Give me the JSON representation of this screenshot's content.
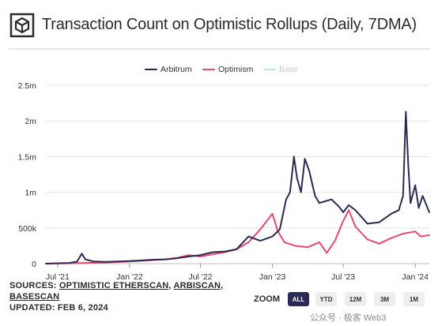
{
  "header": {
    "title": "Transaction Count on Optimistic Rollups (Daily, 7DMA)",
    "logo_icon": "cube-logo-icon"
  },
  "legend": [
    {
      "name": "Arbitrum",
      "color": "#2b2a55",
      "active": true
    },
    {
      "name": "Optimism",
      "color": "#e8476f",
      "active": true
    },
    {
      "name": "Base",
      "color": "#bfe4e6",
      "active": false
    }
  ],
  "chart_data": {
    "type": "line",
    "title": "Transaction Count on Optimistic Rollups (Daily, 7DMA)",
    "xlabel": "",
    "ylabel": "",
    "ylim": [
      0,
      2500000
    ],
    "xlim": [
      "2021-06-01",
      "2024-02-06"
    ],
    "grid": "horizontal",
    "legend_position": "top-center",
    "y_ticks": [
      {
        "value": 0,
        "label": "0"
      },
      {
        "value": 500000,
        "label": "500k"
      },
      {
        "value": 1000000,
        "label": "1m"
      },
      {
        "value": 1500000,
        "label": "1.5m"
      },
      {
        "value": 2000000,
        "label": "2m"
      },
      {
        "value": 2500000,
        "label": "2.5m"
      }
    ],
    "x_ticks": [
      {
        "date": "2021-07-01",
        "label": "Jul '21"
      },
      {
        "date": "2022-01-01",
        "label": "Jan '22"
      },
      {
        "date": "2022-07-01",
        "label": "Jul '22"
      },
      {
        "date": "2023-01-01",
        "label": "Jan '23"
      },
      {
        "date": "2023-07-01",
        "label": "Jul '23"
      },
      {
        "date": "2024-01-01",
        "label": "Jan '24"
      }
    ],
    "series": [
      {
        "name": "Arbitrum",
        "color": "#2b2a55",
        "points": [
          [
            "2021-06-01",
            0
          ],
          [
            "2021-07-01",
            5000
          ],
          [
            "2021-08-01",
            10000
          ],
          [
            "2021-08-20",
            30000
          ],
          [
            "2021-09-01",
            140000
          ],
          [
            "2021-09-10",
            60000
          ],
          [
            "2021-10-01",
            30000
          ],
          [
            "2021-11-01",
            25000
          ],
          [
            "2021-12-01",
            30000
          ],
          [
            "2022-01-01",
            35000
          ],
          [
            "2022-02-01",
            45000
          ],
          [
            "2022-03-01",
            55000
          ],
          [
            "2022-04-01",
            60000
          ],
          [
            "2022-05-01",
            75000
          ],
          [
            "2022-06-01",
            100000
          ],
          [
            "2022-07-01",
            120000
          ],
          [
            "2022-08-01",
            160000
          ],
          [
            "2022-09-01",
            170000
          ],
          [
            "2022-10-01",
            200000
          ],
          [
            "2022-11-01",
            380000
          ],
          [
            "2022-12-01",
            320000
          ],
          [
            "2023-01-01",
            380000
          ],
          [
            "2023-01-20",
            480000
          ],
          [
            "2023-02-05",
            900000
          ],
          [
            "2023-02-15",
            1000000
          ],
          [
            "2023-02-25",
            1500000
          ],
          [
            "2023-03-05",
            1200000
          ],
          [
            "2023-03-15",
            1000000
          ],
          [
            "2023-03-25",
            1470000
          ],
          [
            "2023-04-05",
            1300000
          ],
          [
            "2023-04-20",
            950000
          ],
          [
            "2023-05-01",
            850000
          ],
          [
            "2023-06-01",
            900000
          ],
          [
            "2023-06-20",
            800000
          ],
          [
            "2023-07-01",
            720000
          ],
          [
            "2023-07-15",
            820000
          ],
          [
            "2023-08-01",
            750000
          ],
          [
            "2023-09-01",
            560000
          ],
          [
            "2023-10-01",
            580000
          ],
          [
            "2023-11-01",
            700000
          ],
          [
            "2023-11-20",
            750000
          ],
          [
            "2023-12-01",
            950000
          ],
          [
            "2023-12-08",
            2130000
          ],
          [
            "2023-12-14",
            1400000
          ],
          [
            "2023-12-20",
            850000
          ],
          [
            "2024-01-01",
            1100000
          ],
          [
            "2024-01-10",
            780000
          ],
          [
            "2024-01-20",
            950000
          ],
          [
            "2024-02-06",
            720000
          ]
        ]
      },
      {
        "name": "Optimism",
        "color": "#e8476f",
        "points": [
          [
            "2021-06-01",
            0
          ],
          [
            "2021-08-01",
            5000
          ],
          [
            "2021-11-01",
            15000
          ],
          [
            "2022-01-01",
            30000
          ],
          [
            "2022-02-01",
            40000
          ],
          [
            "2022-03-01",
            50000
          ],
          [
            "2022-04-01",
            60000
          ],
          [
            "2022-05-01",
            80000
          ],
          [
            "2022-06-01",
            120000
          ],
          [
            "2022-07-01",
            100000
          ],
          [
            "2022-08-01",
            130000
          ],
          [
            "2022-09-01",
            160000
          ],
          [
            "2022-10-01",
            200000
          ],
          [
            "2022-11-01",
            300000
          ],
          [
            "2022-12-01",
            480000
          ],
          [
            "2023-01-01",
            700000
          ],
          [
            "2023-01-15",
            450000
          ],
          [
            "2023-02-01",
            300000
          ],
          [
            "2023-03-01",
            250000
          ],
          [
            "2023-04-01",
            230000
          ],
          [
            "2023-05-01",
            300000
          ],
          [
            "2023-05-20",
            150000
          ],
          [
            "2023-06-10",
            320000
          ],
          [
            "2023-07-01",
            600000
          ],
          [
            "2023-07-15",
            750000
          ],
          [
            "2023-08-01",
            520000
          ],
          [
            "2023-09-01",
            340000
          ],
          [
            "2023-10-01",
            280000
          ],
          [
            "2023-11-01",
            360000
          ],
          [
            "2023-12-01",
            420000
          ],
          [
            "2024-01-01",
            450000
          ],
          [
            "2024-01-15",
            380000
          ],
          [
            "2024-02-06",
            400000
          ]
        ]
      },
      {
        "name": "Base",
        "color": "#bfe4e6",
        "hidden": true,
        "points": []
      }
    ]
  },
  "footer": {
    "sources_prefix": "SOURCES: ",
    "sources": [
      "OPTIMISTIC ETHERSCAN",
      "ARBISCAN",
      "BASESCAN"
    ],
    "separator": ", ",
    "updated": "UPDATED: FEB 6, 2024"
  },
  "zoom": {
    "label": "ZOOM",
    "buttons": [
      {
        "label": "ALL",
        "active": true
      },
      {
        "label": "YTD",
        "active": false
      },
      {
        "label": "12M",
        "active": false
      },
      {
        "label": "3M",
        "active": false
      },
      {
        "label": "1M",
        "active": false
      }
    ]
  },
  "watermark": "公众号 · 极客 Web3"
}
